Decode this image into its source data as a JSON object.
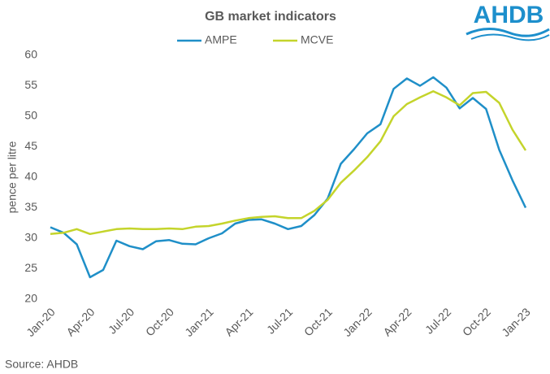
{
  "chart_data": {
    "type": "line",
    "title": "GB market indicators",
    "logo": "AHDB",
    "source": "Source: AHDB",
    "y_label": "pence per litre",
    "categories": [
      "Jan-20",
      null,
      null,
      "Apr-20",
      null,
      null,
      "Jul-20",
      null,
      null,
      "Oct-20",
      null,
      null,
      "Jan-21",
      null,
      null,
      "Apr-21",
      null,
      null,
      "Jul-21",
      null,
      null,
      "Oct-21",
      null,
      null,
      "Jan-22",
      null,
      null,
      "Apr-22",
      null,
      null,
      "Jul-22",
      null,
      null,
      "Oct-22",
      null,
      null,
      "Jan-23"
    ],
    "series": [
      {
        "name": "AMPE",
        "color": "#1f8fc8",
        "values": [
          31.8,
          30.9,
          29.0,
          23.6,
          24.8,
          29.6,
          28.7,
          28.2,
          29.5,
          29.7,
          29.1,
          29.0,
          30.0,
          30.8,
          32.4,
          33.0,
          33.1,
          32.4,
          31.5,
          32.0,
          33.8,
          36.5,
          42.2,
          44.6,
          47.2,
          48.7,
          54.5,
          56.2,
          55.0,
          56.4,
          54.7,
          51.3,
          53.0,
          51.2,
          44.5,
          39.5,
          35.0
        ]
      },
      {
        "name": "MCVE",
        "color": "#c4d42b",
        "values": [
          30.7,
          30.9,
          31.5,
          30.7,
          31.1,
          31.5,
          31.6,
          31.5,
          31.5,
          31.6,
          31.5,
          31.9,
          32.0,
          32.4,
          32.9,
          33.3,
          33.5,
          33.6,
          33.3,
          33.3,
          34.5,
          36.3,
          39.1,
          41.1,
          43.3,
          45.9,
          50.0,
          52.0,
          53.1,
          54.1,
          53.1,
          51.8,
          53.8,
          54.0,
          52.2,
          47.8,
          44.4
        ]
      }
    ],
    "ylim": [
      20,
      60
    ],
    "yticks": [
      20,
      25,
      30,
      35,
      40,
      45,
      50,
      55,
      60
    ],
    "grid": false,
    "legend": "top"
  }
}
